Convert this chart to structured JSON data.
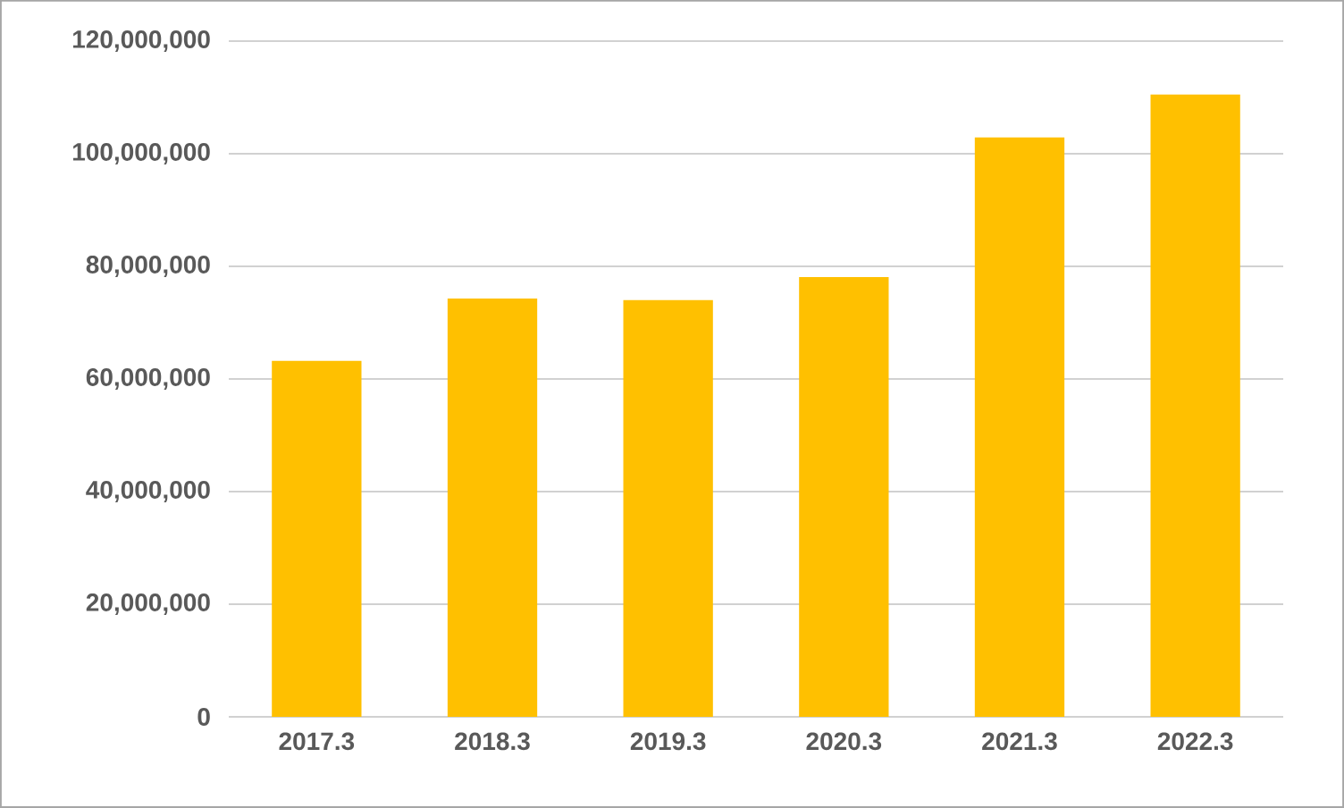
{
  "chart_data": {
    "type": "bar",
    "categories": [
      "2017.3",
      "2018.3",
      "2019.3",
      "2020.3",
      "2021.3",
      "2022.3"
    ],
    "values": [
      63200000,
      74300000,
      74000000,
      78100000,
      102900000,
      110500000
    ],
    "color": "#ffc000",
    "ylim": [
      0,
      120000000
    ],
    "yticks": [
      0,
      {
        "value": 20000000,
        "label": "20,000,000"
      },
      {
        "value": 40000000,
        "label": "40,000,000"
      },
      {
        "value": 60000000,
        "label": "60,000,000"
      },
      {
        "value": 80000000,
        "label": "80,000,000"
      },
      {
        "value": 100000000,
        "label": "100,000,000"
      },
      {
        "value": 120000000,
        "label": "120,000,000"
      }
    ],
    "grid": "y"
  }
}
